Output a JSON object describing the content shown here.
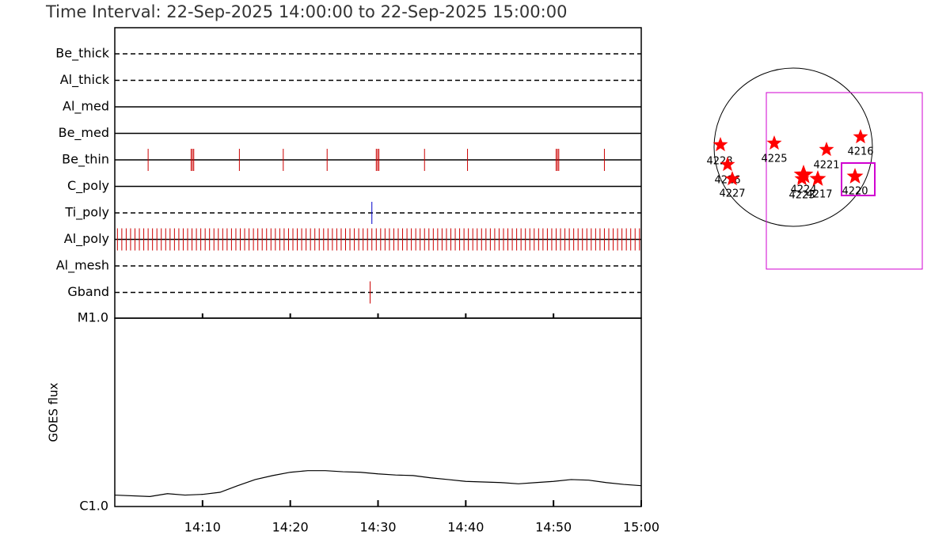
{
  "chart_data": [
    {
      "type": "timeline",
      "title": "Time Interval: 22-Sep-2025 14:00:00 to 22-Sep-2025 15:00:00",
      "xlim": [
        0,
        60
      ],
      "xticks": [
        10,
        20,
        30,
        40,
        50
      ],
      "rows": [
        {
          "name": "Be_thick",
          "line": "dashed",
          "events": []
        },
        {
          "name": "Al_thick",
          "line": "dashed",
          "events": []
        },
        {
          "name": "Al_med",
          "line": "solid",
          "events": []
        },
        {
          "name": "Be_med",
          "line": "solid",
          "events": []
        },
        {
          "name": "Be_thin",
          "line": "solid",
          "color": "#cc0000",
          "events": [
            3.8,
            8.7,
            8.85,
            9.0,
            14.2,
            19.2,
            24.2,
            29.8,
            29.95,
            30.1,
            35.3,
            40.2,
            50.3,
            50.45,
            50.6,
            55.8
          ]
        },
        {
          "name": "C_poly",
          "line": "solid",
          "events": []
        },
        {
          "name": "Ti_poly",
          "line": "dashed",
          "color": "#0000cc",
          "events": [
            29.3
          ]
        },
        {
          "name": "Al_poly",
          "line": "solid",
          "color": "#cc0000",
          "events": [
            0.3,
            0.8,
            1.3,
            1.8,
            2.3,
            2.8,
            3.3,
            3.8,
            4.3,
            4.8,
            5.3,
            5.8,
            6.3,
            6.8,
            7.3,
            7.8,
            8.3,
            8.8,
            9.3,
            9.8,
            10.3,
            10.8,
            11.3,
            11.8,
            12.3,
            12.8,
            13.3,
            13.8,
            14.3,
            14.8,
            15.3,
            15.8,
            16.3,
            16.8,
            17.3,
            17.8,
            18.3,
            18.8,
            19.3,
            19.8,
            20.3,
            20.8,
            21.3,
            21.8,
            22.3,
            22.8,
            23.3,
            23.8,
            24.3,
            24.8,
            25.3,
            25.8,
            26.3,
            26.8,
            27.3,
            27.8,
            28.3,
            28.8,
            29.3,
            29.8,
            30.3,
            30.8,
            31.3,
            31.8,
            32.3,
            32.8,
            33.3,
            33.8,
            34.3,
            34.8,
            35.3,
            35.8,
            36.3,
            36.8,
            37.3,
            37.8,
            38.3,
            38.8,
            39.3,
            39.8,
            40.3,
            40.8,
            41.3,
            41.8,
            42.3,
            42.8,
            43.3,
            43.8,
            44.3,
            44.8,
            45.3,
            45.8,
            46.3,
            46.8,
            47.3,
            47.8,
            48.3,
            48.8,
            49.3,
            49.8,
            50.3,
            50.8,
            51.3,
            51.8,
            52.3,
            52.8,
            53.3,
            53.8,
            54.3,
            54.8,
            55.3,
            55.8,
            56.3,
            56.8,
            57.3,
            57.8,
            58.3,
            58.8,
            59.3,
            59.8
          ]
        },
        {
          "name": "Al_mesh",
          "line": "dashed",
          "events": []
        },
        {
          "name": "Gband",
          "line": "dashed",
          "color": "#cc0000",
          "events": [
            29.1
          ]
        }
      ]
    },
    {
      "type": "line",
      "ylabel": "GOES flux",
      "log_scale": true,
      "color": "#000000",
      "x": [
        0,
        4,
        6,
        8,
        10,
        12,
        14,
        16,
        18,
        20,
        22,
        24,
        26,
        28,
        30,
        32,
        34,
        36,
        38,
        40,
        42,
        44,
        46,
        48,
        50,
        52,
        54,
        56,
        58,
        60
      ],
      "values": [
        1.15e-06,
        1.13e-06,
        1.17e-06,
        1.15e-06,
        1.16e-06,
        1.19e-06,
        1.29e-06,
        1.39e-06,
        1.46e-06,
        1.52e-06,
        1.55e-06,
        1.55e-06,
        1.53e-06,
        1.52e-06,
        1.49e-06,
        1.47e-06,
        1.46e-06,
        1.42e-06,
        1.39e-06,
        1.36e-06,
        1.35e-06,
        1.34e-06,
        1.32e-06,
        1.34e-06,
        1.36e-06,
        1.39e-06,
        1.38e-06,
        1.34e-06,
        1.31e-06,
        1.29e-06
      ],
      "xlim": [
        0,
        60
      ],
      "xticks": [
        {
          "value": 10,
          "label": "14:10"
        },
        {
          "value": 20,
          "label": "14:20"
        },
        {
          "value": 30,
          "label": "14:30"
        },
        {
          "value": 40,
          "label": "14:40"
        },
        {
          "value": 50,
          "label": "14:50"
        },
        {
          "value": 60,
          "label": "15:00"
        }
      ],
      "ylim": [
        1e-06,
        1e-05
      ],
      "yticks": [
        {
          "value": 1e-05,
          "label": "M1.0"
        },
        {
          "value": 1e-06,
          "label": "C1.0"
        }
      ]
    }
  ],
  "map": {
    "regions": [
      "4228",
      "4226",
      "4227",
      "4225",
      "4221",
      "4216",
      "4224",
      "4223",
      "4217",
      "4220"
    ]
  }
}
